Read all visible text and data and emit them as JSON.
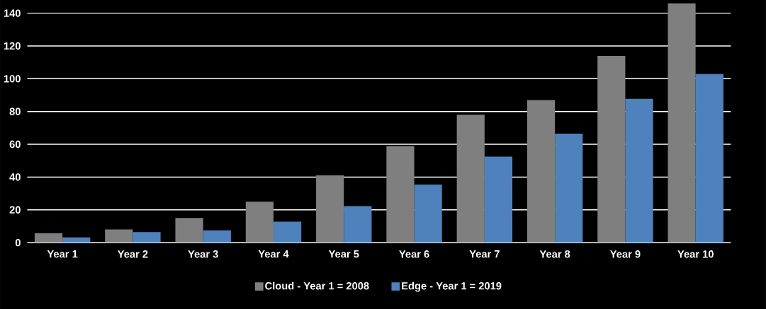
{
  "chart_data": {
    "type": "bar",
    "categories": [
      "Year 1",
      "Year 2",
      "Year 3",
      "Year 4",
      "Year 5",
      "Year 6",
      "Year 7",
      "Year 8",
      "Year 9",
      "Year 10"
    ],
    "series": [
      {
        "name": "Cloud - Year 1 = 2008",
        "color": "#7f7f7f",
        "values": [
          5.8,
          8,
          15,
          25,
          41,
          59,
          78,
          87,
          114,
          146
        ]
      },
      {
        "name": "Edge - Year 1 = 2019",
        "color": "#4f81bd",
        "values": [
          3.2,
          6.4,
          7.5,
          12.8,
          22.3,
          35.4,
          52.5,
          66.5,
          87.7,
          103
        ]
      }
    ],
    "ylim": [
      0,
      148
    ],
    "yticks": [
      0,
      20,
      40,
      60,
      80,
      100,
      120,
      140
    ],
    "grid": "y",
    "legend": "bottom"
  }
}
